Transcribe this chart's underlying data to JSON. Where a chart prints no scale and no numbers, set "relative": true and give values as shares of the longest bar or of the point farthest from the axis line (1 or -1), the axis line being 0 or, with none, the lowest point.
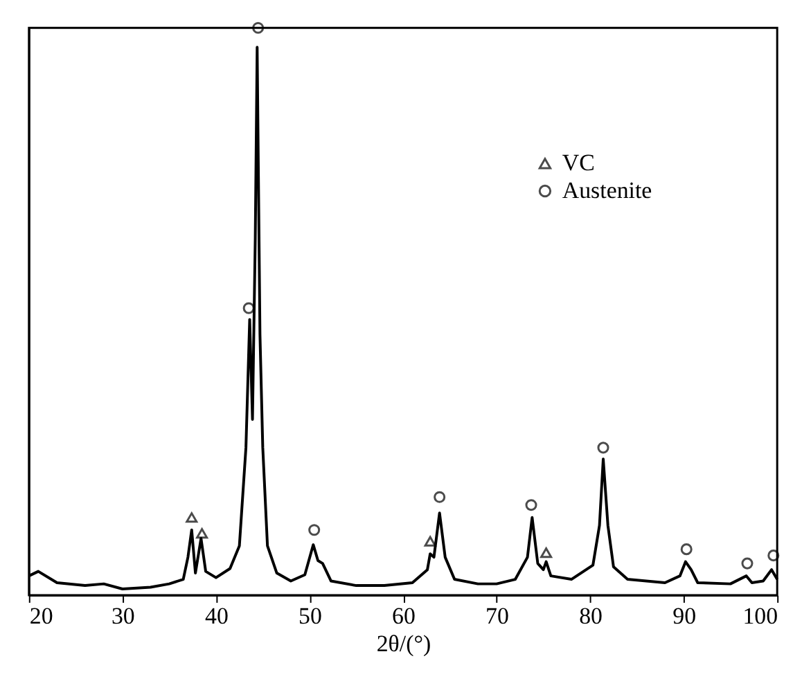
{
  "chart_data": {
    "type": "line",
    "xlabel": "2θ/(°)",
    "xlim": [
      20,
      100
    ],
    "xticks": [
      20,
      30,
      40,
      50,
      60,
      70,
      80,
      90,
      100
    ],
    "relative": true,
    "tick_labels": "x",
    "legend": "top right",
    "grid": false,
    "series": [
      {
        "color": "#000000",
        "marker": "none",
        "x": [
          20,
          21,
          23,
          26,
          28,
          30,
          33,
          35,
          36.5,
          37.0,
          37.4,
          37.8,
          38.4,
          38.9,
          40,
          41.5,
          42.5,
          43.2,
          43.6,
          43.9,
          44.2,
          44.4,
          44.7,
          45.0,
          45.5,
          46.5,
          48,
          49.5,
          50.4,
          50.9,
          51.4,
          52.3,
          55,
          58,
          61,
          62.6,
          62.9,
          63.3,
          63.9,
          64.5,
          65.5,
          68,
          70,
          72,
          73.3,
          73.8,
          74.4,
          75.0,
          75.3,
          75.8,
          78,
          80.3,
          81.0,
          81.4,
          81.9,
          82.5,
          84,
          88,
          89.6,
          90.2,
          90.8,
          91.5,
          95,
          96.7,
          97.3,
          98.5,
          99.4,
          100
        ],
        "values": [
          0.034,
          0.042,
          0.022,
          0.017,
          0.02,
          0.011,
          0.014,
          0.02,
          0.028,
          0.067,
          0.115,
          0.039,
          0.1,
          0.042,
          0.031,
          0.047,
          0.087,
          0.26,
          0.486,
          0.31,
          0.63,
          0.966,
          0.46,
          0.26,
          0.087,
          0.039,
          0.025,
          0.036,
          0.089,
          0.061,
          0.056,
          0.025,
          0.017,
          0.017,
          0.022,
          0.045,
          0.073,
          0.067,
          0.145,
          0.067,
          0.028,
          0.02,
          0.02,
          0.028,
          0.067,
          0.137,
          0.056,
          0.045,
          0.059,
          0.034,
          0.028,
          0.053,
          0.123,
          0.24,
          0.123,
          0.05,
          0.028,
          0.022,
          0.034,
          0.059,
          0.045,
          0.022,
          0.02,
          0.034,
          0.022,
          0.025,
          0.045,
          0.028
        ]
      },
      {
        "type": "scatter",
        "name": "VC",
        "color": "#000000",
        "marker": "triangle",
        "x": [
          37.4,
          38.5,
          62.9,
          75.3
        ],
        "values": [
          0.137,
          0.109,
          0.095,
          0.075
        ]
      },
      {
        "type": "scatter",
        "name": "Austenite",
        "color": "#000000",
        "marker": "circle",
        "x": [
          43.5,
          44.5,
          50.5,
          63.9,
          73.7,
          81.4,
          90.3,
          96.8,
          99.6
        ],
        "values": [
          0.506,
          1.0,
          0.115,
          0.173,
          0.159,
          0.26,
          0.081,
          0.056,
          0.07
        ]
      }
    ]
  }
}
